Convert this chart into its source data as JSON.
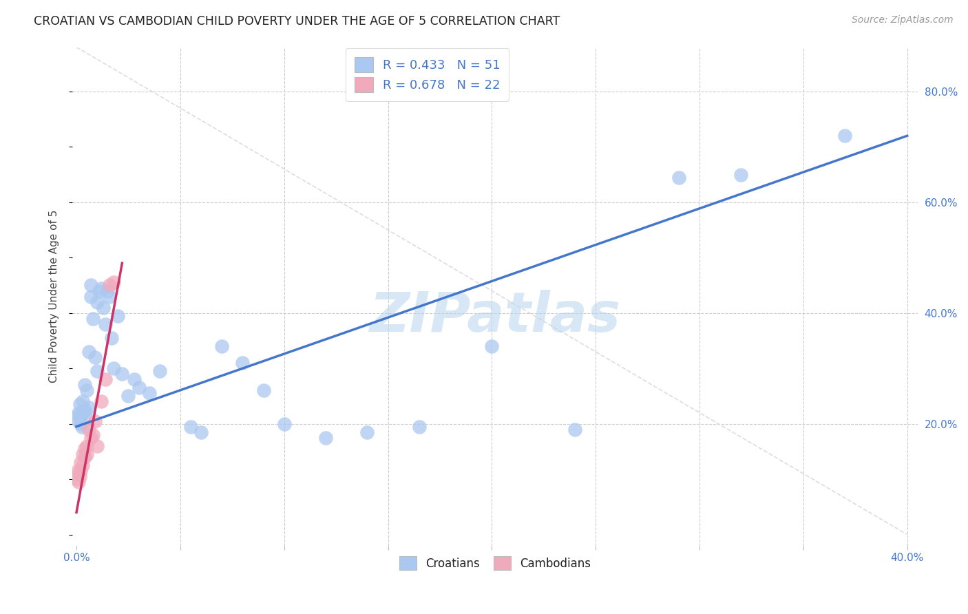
{
  "title": "CROATIAN VS CAMBODIAN CHILD POVERTY UNDER THE AGE OF 5 CORRELATION CHART",
  "source": "Source: ZipAtlas.com",
  "ylabel": "Child Poverty Under the Age of 5",
  "xlim": [
    -0.002,
    0.405
  ],
  "ylim": [
    -0.02,
    0.88
  ],
  "background_color": "#ffffff",
  "grid_color": "#cccccc",
  "watermark_text": "ZIPatlas",
  "croatian_color": "#aac8f0",
  "cambodian_color": "#f0aabb",
  "trendline_croatian_color": "#4477cc",
  "trendline_cambodian_color": "#cc3366",
  "diagonal_color": "#dddddd",
  "legend_label1": "R = 0.433   N = 51",
  "legend_label2": "R = 0.678   N = 22",
  "bottom_label1": "Croatians",
  "bottom_label2": "Cambodians",
  "xtick_positions": [
    0.0,
    0.05,
    0.1,
    0.15,
    0.2,
    0.25,
    0.3,
    0.35,
    0.4
  ],
  "xtick_labels": [
    "0.0%",
    "",
    "",
    "",
    "",
    "",
    "",
    "",
    "40.0%"
  ],
  "ytick_right_positions": [
    0.2,
    0.4,
    0.6,
    0.8
  ],
  "ytick_right_labels": [
    "20.0%",
    "40.0%",
    "60.0%",
    "80.0%"
  ],
  "croatian_x": [
    0.0005,
    0.001,
    0.001,
    0.0015,
    0.002,
    0.002,
    0.0025,
    0.003,
    0.003,
    0.0035,
    0.004,
    0.004,
    0.005,
    0.005,
    0.006,
    0.006,
    0.007,
    0.007,
    0.008,
    0.009,
    0.01,
    0.01,
    0.011,
    0.012,
    0.013,
    0.014,
    0.015,
    0.016,
    0.017,
    0.018,
    0.02,
    0.022,
    0.025,
    0.028,
    0.03,
    0.035,
    0.04,
    0.055,
    0.06,
    0.07,
    0.08,
    0.09,
    0.1,
    0.12,
    0.14,
    0.165,
    0.2,
    0.24,
    0.29,
    0.32,
    0.37
  ],
  "croatian_y": [
    0.215,
    0.205,
    0.22,
    0.235,
    0.2,
    0.215,
    0.195,
    0.22,
    0.24,
    0.225,
    0.27,
    0.225,
    0.21,
    0.26,
    0.23,
    0.33,
    0.43,
    0.45,
    0.39,
    0.32,
    0.42,
    0.295,
    0.44,
    0.445,
    0.41,
    0.38,
    0.44,
    0.43,
    0.355,
    0.3,
    0.395,
    0.29,
    0.25,
    0.28,
    0.265,
    0.255,
    0.295,
    0.195,
    0.185,
    0.34,
    0.31,
    0.26,
    0.2,
    0.175,
    0.185,
    0.195,
    0.34,
    0.19,
    0.645,
    0.65,
    0.72
  ],
  "cambodian_x": [
    0.0003,
    0.0005,
    0.001,
    0.001,
    0.0015,
    0.002,
    0.002,
    0.003,
    0.003,
    0.004,
    0.004,
    0.005,
    0.005,
    0.006,
    0.007,
    0.008,
    0.009,
    0.01,
    0.012,
    0.014,
    0.016,
    0.018
  ],
  "cambodian_y": [
    0.1,
    0.115,
    0.095,
    0.11,
    0.105,
    0.13,
    0.115,
    0.125,
    0.145,
    0.14,
    0.155,
    0.16,
    0.145,
    0.19,
    0.175,
    0.18,
    0.205,
    0.16,
    0.24,
    0.28,
    0.45,
    0.455
  ],
  "croatian_trend_x": [
    0.0,
    0.4
  ],
  "croatian_trend_y": [
    0.195,
    0.72
  ],
  "cambodian_trend_x": [
    0.0,
    0.022
  ],
  "cambodian_trend_y": [
    0.04,
    0.49
  ]
}
